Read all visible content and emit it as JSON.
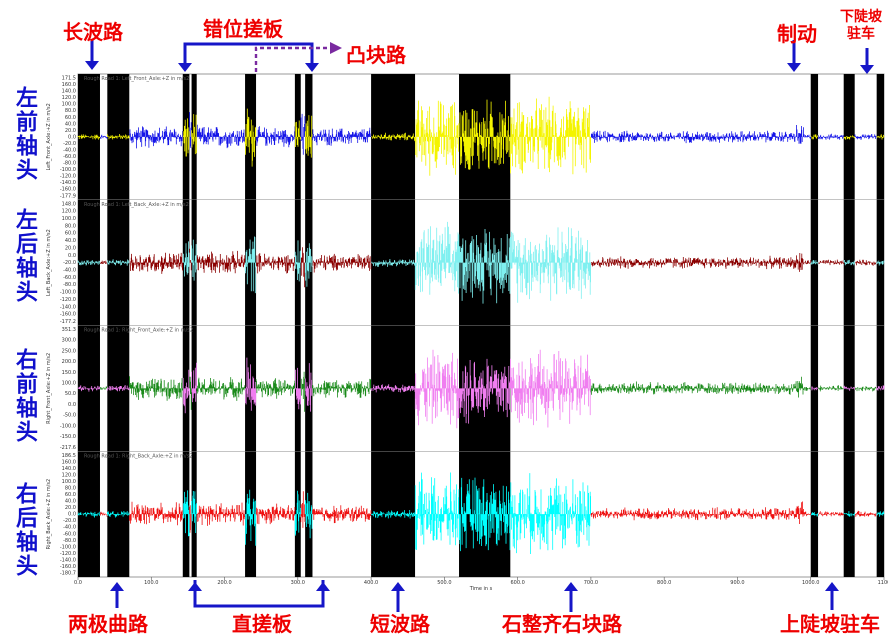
{
  "chart_data": {
    "type": "line",
    "xlabel": "Time in s",
    "xlim": [
      0,
      1100
    ],
    "x_ticks": [
      "0.0",
      "100.0",
      "200.0",
      "300.0",
      "400.0",
      "500.0",
      "600.0",
      "700.0",
      "800.0",
      "900.0",
      "1000.0",
      "1100"
    ],
    "road_segments_black": [
      [
        0,
        30
      ],
      [
        40,
        70
      ],
      [
        143,
        152
      ],
      [
        155,
        162
      ],
      [
        228,
        243
      ],
      [
        296,
        304
      ],
      [
        310,
        320
      ],
      [
        400,
        460
      ],
      [
        520,
        590
      ],
      [
        1000,
        1010
      ],
      [
        1045,
        1060
      ],
      [
        1090,
        1100
      ]
    ],
    "series": [
      {
        "name": "Left_Front_Axle:+Z in m/s2",
        "header": "Rough Road 1: Left_Front_Axle:+Z in m/s2",
        "ylabel": "Left_Front_Axle:+Z in m/s2",
        "row_label": "左前轴头",
        "base_color": "#1515e8",
        "highlight_color": "#f4f400",
        "ylim": [
          -177.9,
          171.5
        ],
        "y_ticks": [
          "171.5",
          "160.0",
          "140.0",
          "120.0",
          "100.0",
          "80.0",
          "60.0",
          "40.0",
          "20.0",
          "0.0",
          "-20.0",
          "-40.0",
          "-60.0",
          "-80.0",
          "-100.0",
          "-120.0",
          "-140.0",
          "-160.0",
          "-177.9"
        ]
      },
      {
        "name": "Left_Back_Axle:+Z in m/s2",
        "header": "Rough Road 1: Left_Back_Axle:+Z in m/s2",
        "ylabel": "Left_Back_Axle:+Z in m/s2",
        "row_label": "左后轴头",
        "base_color": "#8b0000",
        "highlight_color": "#7ff0f0",
        "ylim": [
          -177.2,
          148.0
        ],
        "y_ticks": [
          "148.0",
          "120.0",
          "100.0",
          "80.0",
          "60.0",
          "40.0",
          "20.0",
          "0.0",
          "-20.0",
          "-40.0",
          "-60.0",
          "-80.0",
          "-100.0",
          "-120.0",
          "-140.0",
          "-160.0",
          "-177.2"
        ]
      },
      {
        "name": "Right_Front_Axle:+Z in m/s2",
        "header": "Rough Road 1: Right_Front_Axle:+Z in m/s2",
        "ylabel": "Right_Front_Axle:+Z in m/s2",
        "row_label": "右前轴头",
        "base_color": "#1a8a1a",
        "highlight_color": "#f07ef0",
        "ylim": [
          -217.6,
          351.3
        ],
        "y_ticks": [
          "351.3",
          "300.0",
          "250.0",
          "200.0",
          "150.0",
          "100.0",
          "50.0",
          "0.0",
          "-50.0",
          "-100.0",
          "-150.0",
          "-217.6"
        ]
      },
      {
        "name": "Right_Back_Axle:+Z in m/s2",
        "header": "Rough Road 1: Right_Back_Axle:+Z in m/s2",
        "ylabel": "Right_Back_Axle:+Z in m/s2",
        "row_label": "右后轴头",
        "base_color": "#ee1111",
        "highlight_color": "#00ffff",
        "ylim": [
          -180.7,
          186.5
        ],
        "y_ticks": [
          "186.5",
          "160.0",
          "140.0",
          "120.0",
          "100.0",
          "80.0",
          "60.0",
          "40.0",
          "20.0",
          "0.0",
          "-20.0",
          "-40.0",
          "-60.0",
          "-80.0",
          "-100.0",
          "-120.0",
          "-140.0",
          "-160.0",
          "-180.7"
        ]
      }
    ],
    "annotations_top": [
      "长波路",
      "错位搓板",
      "凸块路",
      "制动",
      "下陡坡\n驻车"
    ],
    "annotations_bottom": [
      "两极曲路",
      "直搓板",
      "短波路",
      "石整齐石块路",
      "上陡坡驻车"
    ],
    "arrow_color": "#1616c8",
    "annotation_color": "#ee0000",
    "row_label_color": "#1010cc"
  }
}
